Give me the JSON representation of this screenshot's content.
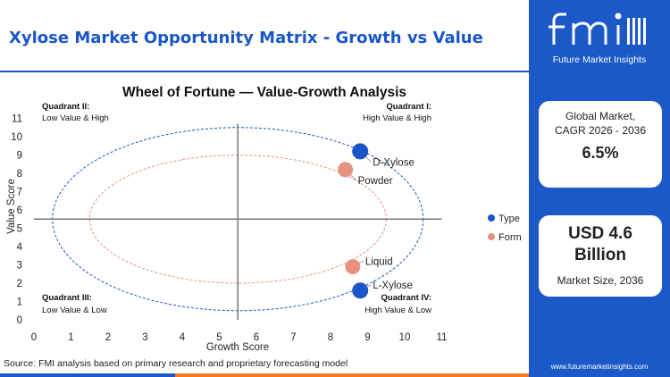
{
  "header": {
    "title": "Xylose Market Opportunity Matrix - Growth vs Value"
  },
  "brand": {
    "name": "fmi",
    "tagline": "Future Market Insights",
    "website": "www.futuremarketinsights.com"
  },
  "stats": {
    "cagr_label_line1": "Global Market,",
    "cagr_label_line2": "CAGR 2026 - 2036",
    "cagr_value": "6.5%",
    "size_value_line1": "USD 4.6",
    "size_value_line2": "Billion",
    "size_label": "Market Size, 2036"
  },
  "source": "Source: FMI analysis based on primary research and proprietary forecasting model",
  "colors": {
    "brand_blue": "#1b59c9",
    "type": "#1a56c8",
    "form": "#e8917e",
    "footer_orange": "#f47b20"
  },
  "chart_data": {
    "type": "scatter",
    "title": "Wheel of Fortune — Value-Growth Analysis",
    "xlabel": "Growth Score",
    "ylabel": "Value Score",
    "xlim": [
      0,
      11
    ],
    "ylim": [
      0,
      11
    ],
    "xticks": [
      0,
      1,
      2,
      3,
      4,
      5,
      6,
      7,
      8,
      9,
      10,
      11
    ],
    "yticks": [
      0,
      1,
      2,
      3,
      4,
      5,
      6,
      7,
      8,
      9,
      10,
      11
    ],
    "legend": [
      {
        "name": "Type",
        "color": "#1a56c8"
      },
      {
        "name": "Form",
        "color": "#e8917e"
      }
    ],
    "legend_position": "right",
    "points": [
      {
        "label": "D-Xylose",
        "x": 8.8,
        "y": 9.2,
        "group": "Type"
      },
      {
        "label": "Powder",
        "x": 8.4,
        "y": 8.2,
        "group": "Form"
      },
      {
        "label": "Liquid",
        "x": 8.6,
        "y": 2.9,
        "group": "Form"
      },
      {
        "label": "L-Xylose",
        "x": 8.8,
        "y": 1.6,
        "group": "Type"
      }
    ],
    "quadrants": [
      {
        "name": "Quadrant II:",
        "desc": "Low Value & High"
      },
      {
        "name": "Quadrant I:",
        "desc": "High Value & High"
      },
      {
        "name": "Quadrant III:",
        "desc": "Low Value & Low"
      },
      {
        "name": "Quadrant IV:",
        "desc": "High Value & Low"
      }
    ],
    "divider": {
      "x": 5.5,
      "y": 5.5
    },
    "ellipses": [
      {
        "group": "Type",
        "cx": 5.5,
        "cy": 5.5,
        "rx": 5.0,
        "ry": 5.0
      },
      {
        "group": "Form",
        "cx": 5.5,
        "cy": 5.5,
        "rx": 4.0,
        "ry": 3.5
      }
    ]
  }
}
